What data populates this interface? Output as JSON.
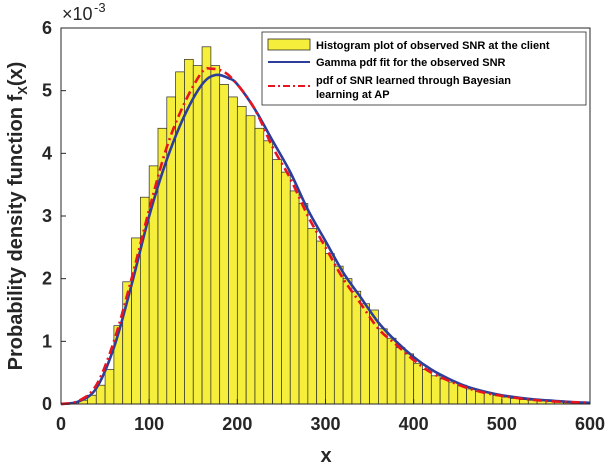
{
  "chart_data": {
    "type": "bar",
    "title": "",
    "xlabel": "x",
    "ylabel_main": "Probability density function f",
    "ylabel_sub": "X",
    "ylabel_tail": "(x)",
    "xlim": [
      0,
      600
    ],
    "ylim": [
      0,
      0.006
    ],
    "y_multiplier_base": "×10",
    "y_multiplier_exp": "-3",
    "x_ticks": [
      "0",
      "100",
      "200",
      "300",
      "400",
      "500",
      "600"
    ],
    "y_ticks": [
      "0",
      "1",
      "2",
      "3",
      "4",
      "5",
      "6"
    ],
    "histogram": {
      "name": "Histogram plot of observed SNR at the client",
      "bin_width": 10,
      "bin_starts": [
        0,
        10,
        20,
        30,
        40,
        50,
        60,
        70,
        80,
        90,
        100,
        110,
        120,
        130,
        140,
        150,
        160,
        170,
        180,
        190,
        200,
        210,
        220,
        230,
        240,
        250,
        260,
        270,
        280,
        290,
        300,
        310,
        320,
        330,
        340,
        350,
        360,
        370,
        380,
        390,
        400,
        410,
        420,
        430,
        440,
        450,
        460,
        470,
        480,
        490,
        500,
        510,
        520,
        530,
        540,
        550,
        560,
        570,
        580,
        590
      ],
      "values": [
        1e-05,
        2e-05,
        6e-05,
        0.00014,
        0.0003,
        0.00055,
        0.00125,
        0.00195,
        0.00265,
        0.0033,
        0.0038,
        0.0044,
        0.0049,
        0.0053,
        0.0055,
        0.0054,
        0.0057,
        0.0054,
        0.0051,
        0.0049,
        0.00475,
        0.0046,
        0.0044,
        0.0042,
        0.0039,
        0.0037,
        0.0034,
        0.0032,
        0.0028,
        0.0026,
        0.0024,
        0.0022,
        0.002,
        0.0018,
        0.0016,
        0.0015,
        0.0012,
        0.00105,
        0.0009,
        0.0008,
        0.00065,
        0.00055,
        0.00045,
        0.0004,
        0.00035,
        0.0003,
        0.00024,
        0.0002,
        0.00018,
        0.00014,
        0.00011,
        9e-05,
        7e-05,
        6e-05,
        5e-05,
        4e-05,
        3e-05,
        2e-05,
        2e-05,
        1e-05
      ]
    },
    "series": [
      {
        "name": "Gamma pdf fit for the observed SNR",
        "color": "#2c3e9a",
        "style": "solid",
        "x": [
          0,
          20,
          40,
          60,
          80,
          100,
          120,
          140,
          160,
          175,
          190,
          200,
          220,
          240,
          260,
          280,
          300,
          320,
          340,
          360,
          380,
          400,
          420,
          440,
          460,
          480,
          500,
          520,
          540,
          560,
          580,
          600
        ],
        "values": [
          0,
          4e-05,
          0.00025,
          0.0009,
          0.0019,
          0.003,
          0.0039,
          0.0046,
          0.0051,
          0.00525,
          0.0052,
          0.0051,
          0.0047,
          0.0042,
          0.0037,
          0.0031,
          0.0026,
          0.0021,
          0.0017,
          0.0013,
          0.001,
          0.00075,
          0.00055,
          0.0004,
          0.00028,
          0.0002,
          0.00014,
          0.0001,
          7e-05,
          5e-05,
          3e-05,
          2e-05
        ]
      },
      {
        "name": "pdf of SNR learned through Bayesian learning at AP",
        "color": "#e8141f",
        "style": "dashdot",
        "x": [
          0,
          20,
          40,
          60,
          80,
          100,
          120,
          140,
          160,
          170,
          185,
          200,
          220,
          240,
          260,
          280,
          300,
          320,
          340,
          360,
          380,
          400,
          420,
          440,
          460,
          480,
          500,
          520,
          540,
          560,
          580,
          600
        ],
        "values": [
          0,
          5e-05,
          0.0003,
          0.001,
          0.002,
          0.0031,
          0.0041,
          0.0048,
          0.0053,
          0.00535,
          0.0053,
          0.0051,
          0.0047,
          0.0041,
          0.0036,
          0.003,
          0.0025,
          0.002,
          0.0016,
          0.0012,
          0.00095,
          0.0007,
          0.0005,
          0.00037,
          0.00026,
          0.00018,
          0.00013,
          9e-05,
          6e-05,
          4e-05,
          3e-05,
          2e-05
        ]
      }
    ],
    "legend_lines": [
      "Histogram plot of observed SNR at the client",
      "Gamma pdf fit for the observed SNR",
      "pdf of SNR learned through Bayesian",
      "learning at AP"
    ],
    "legend_position": "top-right",
    "grid": false,
    "colors": {
      "bar_fill": "#f5ee3a",
      "bar_edge": "#2a2a2a",
      "gamma": "#2c3e9a",
      "bayes": "#e8141f",
      "axis": "#262626"
    }
  }
}
